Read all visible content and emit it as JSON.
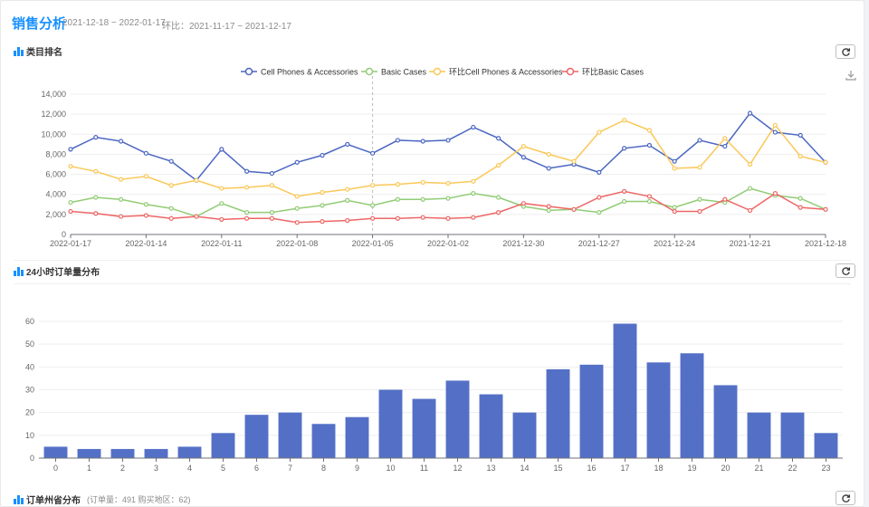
{
  "header": {
    "title": "销售分析",
    "date_range": "2021-12-18 ~ 2022-01-17",
    "compare_range": "环比：2021-11-17 ~ 2021-12-17"
  },
  "sections": {
    "category": {
      "title": "类目排名"
    },
    "hourly": {
      "title": "24小时订单量分布"
    },
    "province": {
      "title": "订单州省分布",
      "subtitle": "(订单量：491  购买地区：62)"
    }
  },
  "icons": {
    "refresh": "refresh-icon",
    "download": "download-icon",
    "chart": "bar-chart-icon"
  },
  "colors": {
    "accent": "#1890ff",
    "blue": "#4a66c1",
    "green": "#91cc75",
    "yellow": "#fac858",
    "red": "#ee6666",
    "bar": "#5470c6"
  },
  "chart_data": [
    {
      "type": "line",
      "x": [
        "2022-01-17",
        "2022-01-16",
        "2022-01-15",
        "2022-01-14",
        "2022-01-13",
        "2022-01-12",
        "2022-01-11",
        "2022-01-10",
        "2022-01-09",
        "2022-01-08",
        "2022-01-07",
        "2022-01-06",
        "2022-01-05",
        "2022-01-04",
        "2022-01-03",
        "2022-01-02",
        "2022-01-01",
        "2021-12-31",
        "2021-12-30",
        "2021-12-29",
        "2021-12-28",
        "2021-12-27",
        "2021-12-26",
        "2021-12-25",
        "2021-12-24",
        "2021-12-23",
        "2021-12-22",
        "2021-12-21",
        "2021-12-20",
        "2021-12-19",
        "2021-12-18"
      ],
      "tick_labels": [
        "2022-01-17",
        "2022-01-14",
        "2022-01-11",
        "2022-01-08",
        "2022-01-05",
        "2022-01-02",
        "2021-12-30",
        "2021-12-27",
        "2021-12-24",
        "2021-12-21",
        "2021-12-18"
      ],
      "ylim": [
        0,
        14000
      ],
      "yticks": [
        "0",
        "2,000",
        "4,000",
        "6,000",
        "8,000",
        "10,000",
        "12,000",
        "14,000"
      ],
      "legend_position": "top-center",
      "grid": true,
      "marker_x": "2022-01-05",
      "series": [
        {
          "name": "Cell Phones & Accessories",
          "color": "#4a66c1",
          "values": [
            8500,
            9700,
            9300,
            8100,
            7300,
            5400,
            8500,
            6300,
            6100,
            7200,
            7900,
            9000,
            8100,
            9400,
            9300,
            9400,
            10700,
            9600,
            7700,
            6600,
            7000,
            6200,
            8600,
            8900,
            7300,
            9400,
            8800,
            12100,
            10200,
            9900,
            7200
          ]
        },
        {
          "name": "Basic Cases",
          "color": "#91cc75",
          "values": [
            3200,
            3700,
            3500,
            3000,
            2600,
            1800,
            3100,
            2200,
            2200,
            2600,
            2900,
            3400,
            2900,
            3500,
            3500,
            3600,
            4100,
            3700,
            2800,
            2400,
            2500,
            2200,
            3300,
            3300,
            2700,
            3500,
            3200,
            4600,
            3900,
            3600,
            2500
          ]
        },
        {
          "name": "环比Cell Phones & Accessories",
          "color": "#fac858",
          "values": [
            6800,
            6300,
            5500,
            5800,
            4900,
            5400,
            4600,
            4700,
            4900,
            3800,
            4200,
            4500,
            4900,
            5000,
            5200,
            5100,
            5300,
            6900,
            8800,
            8000,
            7300,
            10200,
            11400,
            10400,
            6600,
            6700,
            9600,
            7000,
            10900,
            7800,
            7200
          ]
        },
        {
          "name": "环比Basic Cases",
          "color": "#ee6666",
          "values": [
            2300,
            2100,
            1800,
            1900,
            1600,
            1800,
            1500,
            1600,
            1600,
            1200,
            1300,
            1400,
            1600,
            1600,
            1700,
            1600,
            1700,
            2200,
            3100,
            2800,
            2500,
            3700,
            4300,
            3800,
            2300,
            2300,
            3500,
            2400,
            4100,
            2700,
            2500
          ]
        }
      ]
    },
    {
      "type": "bar",
      "categories": [
        "0",
        "1",
        "2",
        "3",
        "4",
        "5",
        "6",
        "7",
        "8",
        "9",
        "10",
        "11",
        "12",
        "13",
        "14",
        "15",
        "16",
        "17",
        "18",
        "19",
        "20",
        "21",
        "22",
        "23"
      ],
      "values": [
        5,
        4,
        4,
        4,
        5,
        11,
        19,
        20,
        15,
        18,
        30,
        26,
        34,
        28,
        20,
        39,
        41,
        59,
        42,
        46,
        32,
        20,
        20,
        11
      ],
      "ylim": [
        0,
        60
      ],
      "yticks": [
        "0",
        "10",
        "20",
        "30",
        "40",
        "50",
        "60"
      ],
      "grid": true,
      "color": "#5470c6"
    }
  ]
}
